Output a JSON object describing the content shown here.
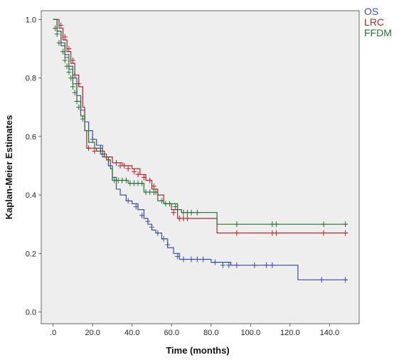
{
  "chart_data": {
    "type": "line",
    "title": "",
    "xlabel": "Time (months)",
    "ylabel": "Kaplan-Meier Estimates",
    "xlim": [
      -6,
      155
    ],
    "ylim": [
      -0.04,
      1.03
    ],
    "x_ticks": [
      0,
      20,
      40,
      60,
      80,
      100,
      120,
      140
    ],
    "x_tick_labels": [
      ".0",
      "20.0",
      "40.0",
      "60.0",
      "80.0",
      "100.0",
      "120.0",
      "140.0"
    ],
    "y_ticks": [
      0,
      0.2,
      0.4,
      0.6,
      0.8,
      1.0
    ],
    "y_tick_labels": [
      "0.0",
      "0.2",
      "0.4",
      "0.6",
      "0.8",
      "1.0"
    ],
    "grid": false,
    "background": "#eeeeee",
    "legend_position": "top-right outside",
    "series": [
      {
        "name": "OS",
        "color": "#3a4f9f",
        "steps": [
          [
            0,
            1.0
          ],
          [
            2,
            0.96
          ],
          [
            4,
            0.92
          ],
          [
            6,
            0.88
          ],
          [
            8,
            0.84
          ],
          [
            10,
            0.8
          ],
          [
            12,
            0.74
          ],
          [
            14,
            0.69
          ],
          [
            16,
            0.65
          ],
          [
            18,
            0.62
          ],
          [
            20,
            0.59
          ],
          [
            22,
            0.57
          ],
          [
            25,
            0.53
          ],
          [
            28,
            0.5
          ],
          [
            30,
            0.46
          ],
          [
            32,
            0.42
          ],
          [
            34,
            0.4
          ],
          [
            37,
            0.38
          ],
          [
            40,
            0.37
          ],
          [
            43,
            0.35
          ],
          [
            46,
            0.32
          ],
          [
            48,
            0.3
          ],
          [
            50,
            0.28
          ],
          [
            52,
            0.27
          ],
          [
            55,
            0.25
          ],
          [
            58,
            0.22
          ],
          [
            61,
            0.2
          ],
          [
            64,
            0.18
          ],
          [
            80,
            0.17
          ],
          [
            90,
            0.16
          ],
          [
            124,
            0.11
          ],
          [
            149,
            0.11
          ]
        ],
        "censors": [
          [
            20,
            0.59
          ],
          [
            24,
            0.56
          ],
          [
            38,
            0.38
          ],
          [
            42,
            0.36
          ],
          [
            45,
            0.33
          ],
          [
            48,
            0.31
          ],
          [
            50,
            0.29
          ],
          [
            53,
            0.27
          ],
          [
            56,
            0.25
          ],
          [
            58,
            0.23
          ],
          [
            63,
            0.19
          ],
          [
            66,
            0.18
          ],
          [
            70,
            0.18
          ],
          [
            73,
            0.18
          ],
          [
            76,
            0.18
          ],
          [
            82,
            0.17
          ],
          [
            86,
            0.16
          ],
          [
            89,
            0.16
          ],
          [
            93,
            0.16
          ],
          [
            102,
            0.16
          ],
          [
            108,
            0.16
          ],
          [
            111,
            0.16
          ],
          [
            136,
            0.11
          ],
          [
            148,
            0.11
          ]
        ]
      },
      {
        "name": "LRC",
        "color": "#a3282d",
        "steps": [
          [
            0,
            1.0
          ],
          [
            3,
            0.97
          ],
          [
            5,
            0.93
          ],
          [
            7,
            0.89
          ],
          [
            9,
            0.85
          ],
          [
            11,
            0.81
          ],
          [
            13,
            0.77
          ],
          [
            15,
            0.7
          ],
          [
            16,
            0.62
          ],
          [
            17,
            0.56
          ],
          [
            22,
            0.55
          ],
          [
            26,
            0.53
          ],
          [
            30,
            0.51
          ],
          [
            35,
            0.5
          ],
          [
            40,
            0.49
          ],
          [
            44,
            0.47
          ],
          [
            47,
            0.45
          ],
          [
            50,
            0.42
          ],
          [
            53,
            0.4
          ],
          [
            56,
            0.37
          ],
          [
            60,
            0.35
          ],
          [
            63,
            0.32
          ],
          [
            83,
            0.27
          ],
          [
            149,
            0.27
          ]
        ],
        "censors": [
          [
            4,
            0.98
          ],
          [
            6,
            0.94
          ],
          [
            8,
            0.9
          ],
          [
            10,
            0.86
          ],
          [
            11,
            0.81
          ],
          [
            13,
            0.78
          ],
          [
            18,
            0.56
          ],
          [
            21,
            0.55
          ],
          [
            28,
            0.52
          ],
          [
            32,
            0.51
          ],
          [
            34,
            0.5
          ],
          [
            36,
            0.5
          ],
          [
            38,
            0.49
          ],
          [
            41,
            0.48
          ],
          [
            43,
            0.47
          ],
          [
            46,
            0.46
          ],
          [
            49,
            0.45
          ],
          [
            51,
            0.43
          ],
          [
            52,
            0.41
          ],
          [
            61,
            0.34
          ],
          [
            64,
            0.32
          ],
          [
            66,
            0.32
          ],
          [
            68,
            0.32
          ],
          [
            93,
            0.27
          ],
          [
            111,
            0.27
          ],
          [
            113,
            0.27
          ],
          [
            137,
            0.27
          ],
          [
            148,
            0.27
          ]
        ]
      },
      {
        "name": "FFDM",
        "color": "#2a6f38",
        "steps": [
          [
            0,
            1.0
          ],
          [
            2,
            0.96
          ],
          [
            4,
            0.91
          ],
          [
            6,
            0.87
          ],
          [
            8,
            0.83
          ],
          [
            10,
            0.78
          ],
          [
            12,
            0.72
          ],
          [
            14,
            0.67
          ],
          [
            16,
            0.62
          ],
          [
            18,
            0.58
          ],
          [
            21,
            0.56
          ],
          [
            24,
            0.54
          ],
          [
            27,
            0.52
          ],
          [
            29,
            0.49
          ],
          [
            30,
            0.45
          ],
          [
            38,
            0.44
          ],
          [
            46,
            0.41
          ],
          [
            53,
            0.38
          ],
          [
            56,
            0.37
          ],
          [
            63,
            0.35
          ],
          [
            65,
            0.34
          ],
          [
            83,
            0.3
          ],
          [
            149,
            0.3
          ]
        ],
        "censors": [
          [
            1,
            0.97
          ],
          [
            2,
            0.95
          ],
          [
            3,
            0.92
          ],
          [
            5,
            0.89
          ],
          [
            6,
            0.86
          ],
          [
            7,
            0.84
          ],
          [
            8,
            0.82
          ],
          [
            9,
            0.8
          ],
          [
            10,
            0.77
          ],
          [
            11,
            0.75
          ],
          [
            12,
            0.72
          ],
          [
            13,
            0.7
          ],
          [
            15,
            0.66
          ],
          [
            31,
            0.45
          ],
          [
            33,
            0.45
          ],
          [
            35,
            0.45
          ],
          [
            37,
            0.45
          ],
          [
            39,
            0.44
          ],
          [
            41,
            0.44
          ],
          [
            43,
            0.44
          ],
          [
            45,
            0.44
          ],
          [
            47,
            0.41
          ],
          [
            49,
            0.41
          ],
          [
            51,
            0.41
          ],
          [
            55,
            0.38
          ],
          [
            57,
            0.37
          ],
          [
            59,
            0.37
          ],
          [
            62,
            0.36
          ],
          [
            66,
            0.34
          ],
          [
            68,
            0.34
          ],
          [
            70,
            0.34
          ],
          [
            73,
            0.34
          ],
          [
            93,
            0.3
          ],
          [
            111,
            0.3
          ],
          [
            113,
            0.3
          ],
          [
            137,
            0.3
          ],
          [
            148,
            0.3
          ]
        ]
      }
    ]
  }
}
